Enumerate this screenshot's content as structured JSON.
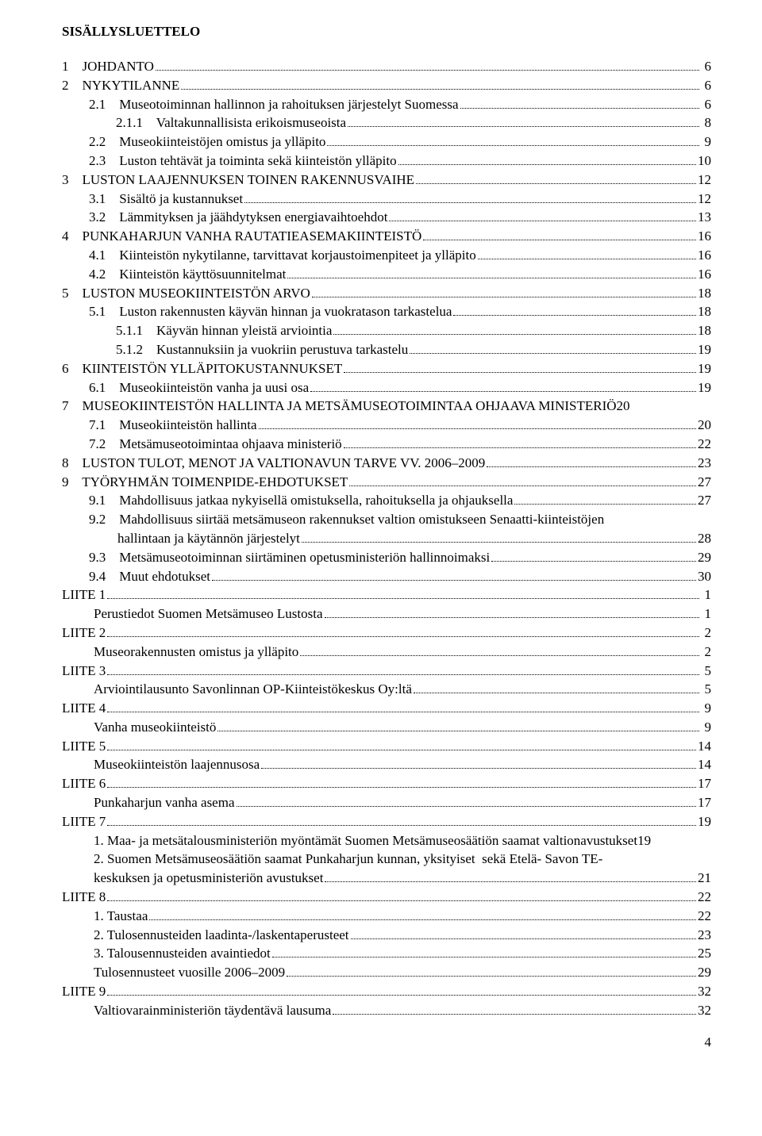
{
  "title": "SISÄLLYSLUETTELO",
  "page_number": "4",
  "entries": [
    {
      "indent": "i0",
      "text": "1    JOHDANTO",
      "page": " 6"
    },
    {
      "indent": "i0",
      "text": "2    NYKYTILANNE",
      "page": " 6"
    },
    {
      "indent": "i1",
      "text": "2.1    Museotoiminnan hallinnon ja rahoituksen järjestelyt Suomessa",
      "page": " 6"
    },
    {
      "indent": "i2",
      "text": "2.1.1    Valtakunnallisista erikoismuseoista",
      "page": " 8"
    },
    {
      "indent": "i1",
      "text": "2.2    Museokiinteistöjen omistus ja ylläpito",
      "page": " 9"
    },
    {
      "indent": "i1",
      "text": "2.3    Luston tehtävät ja toiminta sekä kiinteistön ylläpito",
      "page": "10"
    },
    {
      "indent": "i0",
      "text": "3    LUSTON LAAJENNUKSEN TOINEN RAKENNUSVAIHE",
      "page": "12"
    },
    {
      "indent": "i1",
      "text": "3.1    Sisältö ja kustannukset",
      "page": "12"
    },
    {
      "indent": "i1",
      "text": "3.2    Lämmityksen ja jäähdytyksen energiavaihtoehdot",
      "page": "13"
    },
    {
      "indent": "i0",
      "text": "4    PUNKAHARJUN VANHA RAUTATIEASEMAKIINTEISTÖ",
      "page": "16"
    },
    {
      "indent": "i1",
      "text": "4.1    Kiinteistön nykytilanne, tarvittavat korjaustoimenpiteet ja ylläpito",
      "page": "16"
    },
    {
      "indent": "i1",
      "text": "4.2    Kiinteistön käyttösuunnitelmat",
      "page": "16"
    },
    {
      "indent": "i0",
      "text": "5    LUSTON MUSEOKIINTEISTÖN ARVO",
      "page": "18"
    },
    {
      "indent": "i1",
      "text": "5.1    Luston rakennusten käyvän hinnan ja vuokratason tarkastelua",
      "page": "18"
    },
    {
      "indent": "i2",
      "text": "5.1.1    Käyvän hinnan yleistä arviointia",
      "page": "18"
    },
    {
      "indent": "i2",
      "text": "5.1.2    Kustannuksiin ja vuokriin perustuva tarkastelu",
      "page": "19"
    },
    {
      "indent": "i0",
      "text": "6    KIINTEISTÖN YLLÄPITOKUSTANNUKSET",
      "page": "19"
    },
    {
      "indent": "i1",
      "text": "6.1    Museokiinteistön vanha ja uusi osa",
      "page": "19"
    },
    {
      "indent": "i0",
      "text": "7    MUSEOKIINTEISTÖN HALLINTA JA METSÄMUSEOTOIMINTAA OHJAAVA MINISTERIÖ",
      "page": "20",
      "nodots": true
    },
    {
      "indent": "i1",
      "text": "7.1    Museokiinteistön hallinta",
      "page": "20"
    },
    {
      "indent": "i1",
      "text": "7.2    Metsämuseotoimintaa ohjaava ministeriö",
      "page": "22"
    },
    {
      "indent": "i0",
      "text": "8    LUSTON TULOT, MENOT JA VALTIONAVUN TARVE VV. 2006–2009",
      "page": "23"
    },
    {
      "indent": "i0",
      "text": "9    TYÖRYHMÄN TOIMENPIDE-EHDOTUKSET",
      "page": "27"
    },
    {
      "indent": "i1",
      "text": "9.1    Mahdollisuus jatkaa nykyisellä omistuksella, rahoituksella ja ohjauksella",
      "page": "27"
    },
    {
      "indent": "i1",
      "text": "9.2    Mahdollisuus siirtää metsämuseon rakennukset valtion omistukseen Senaatti-kiinteistöjen",
      "page": "",
      "nopagedots": true
    },
    {
      "indent": "i2b",
      "text": "hallintaan ja käytännön järjestelyt",
      "page": "28"
    },
    {
      "indent": "i1",
      "text": "9.3    Metsämuseotoiminnan siirtäminen opetusministeriön hallinnoimaksi",
      "page": "29"
    },
    {
      "indent": "i1",
      "text": "9.4    Muut ehdotukset",
      "page": "30"
    },
    {
      "indent": "i0",
      "text": "LIITE 1",
      "page": " 1"
    },
    {
      "indent": "i1b",
      "text": "Perustiedot Suomen Metsämuseo Lustosta",
      "page": " 1"
    },
    {
      "indent": "i0",
      "text": "LIITE 2",
      "page": " 2"
    },
    {
      "indent": "i1b",
      "text": "Museorakennusten omistus ja ylläpito",
      "page": " 2"
    },
    {
      "indent": "i0",
      "text": "LIITE 3",
      "page": " 5"
    },
    {
      "indent": "i1b",
      "text": "Arviointilausunto Savonlinnan OP-Kiinteistökeskus Oy:ltä",
      "page": " 5"
    },
    {
      "indent": "i0",
      "text": "LIITE 4",
      "page": " 9"
    },
    {
      "indent": "i1b",
      "text": "Vanha museokiinteistö",
      "page": " 9"
    },
    {
      "indent": "i0",
      "text": "LIITE 5",
      "page": "14"
    },
    {
      "indent": "i1b",
      "text": "Museokiinteistön laajennusosa",
      "page": "14"
    },
    {
      "indent": "i0",
      "text": "LIITE 6",
      "page": "17"
    },
    {
      "indent": "i1b",
      "text": "Punkaharjun vanha asema",
      "page": "17"
    },
    {
      "indent": "i0",
      "text": "LIITE 7",
      "page": "19"
    },
    {
      "indent": "i1b",
      "text": "1. Maa- ja metsätalousministeriön myöntämät Suomen Metsämuseosäätiön saamat valtionavustukset",
      "page": "19",
      "nodots": true
    },
    {
      "indent": "i1b",
      "text": "2. Suomen Metsämuseosäätiön saamat Punkaharjun kunnan, yksityiset  sekä Etelä- Savon TE-",
      "page": "",
      "nopagedots": true
    },
    {
      "indent": "i1b",
      "text": "keskuksen ja opetusministeriön avustukset",
      "page": "21"
    },
    {
      "indent": "i0",
      "text": "LIITE 8",
      "page": "22"
    },
    {
      "indent": "i1b",
      "text": "1. Taustaa",
      "page": "22"
    },
    {
      "indent": "i1b",
      "text": "2. Tulosennusteiden laadinta-/laskentaperusteet",
      "page": "23"
    },
    {
      "indent": "i1b",
      "text": "3. Talousennusteiden avaintiedot",
      "page": "25"
    },
    {
      "indent": "i1b",
      "text": "Tulosennusteet vuosille 2006–2009",
      "page": "29"
    },
    {
      "indent": "i0",
      "text": "LIITE 9",
      "page": "32"
    },
    {
      "indent": "i1b",
      "text": "Valtiovarainministeriön täydentävä lausuma",
      "page": "32"
    }
  ]
}
